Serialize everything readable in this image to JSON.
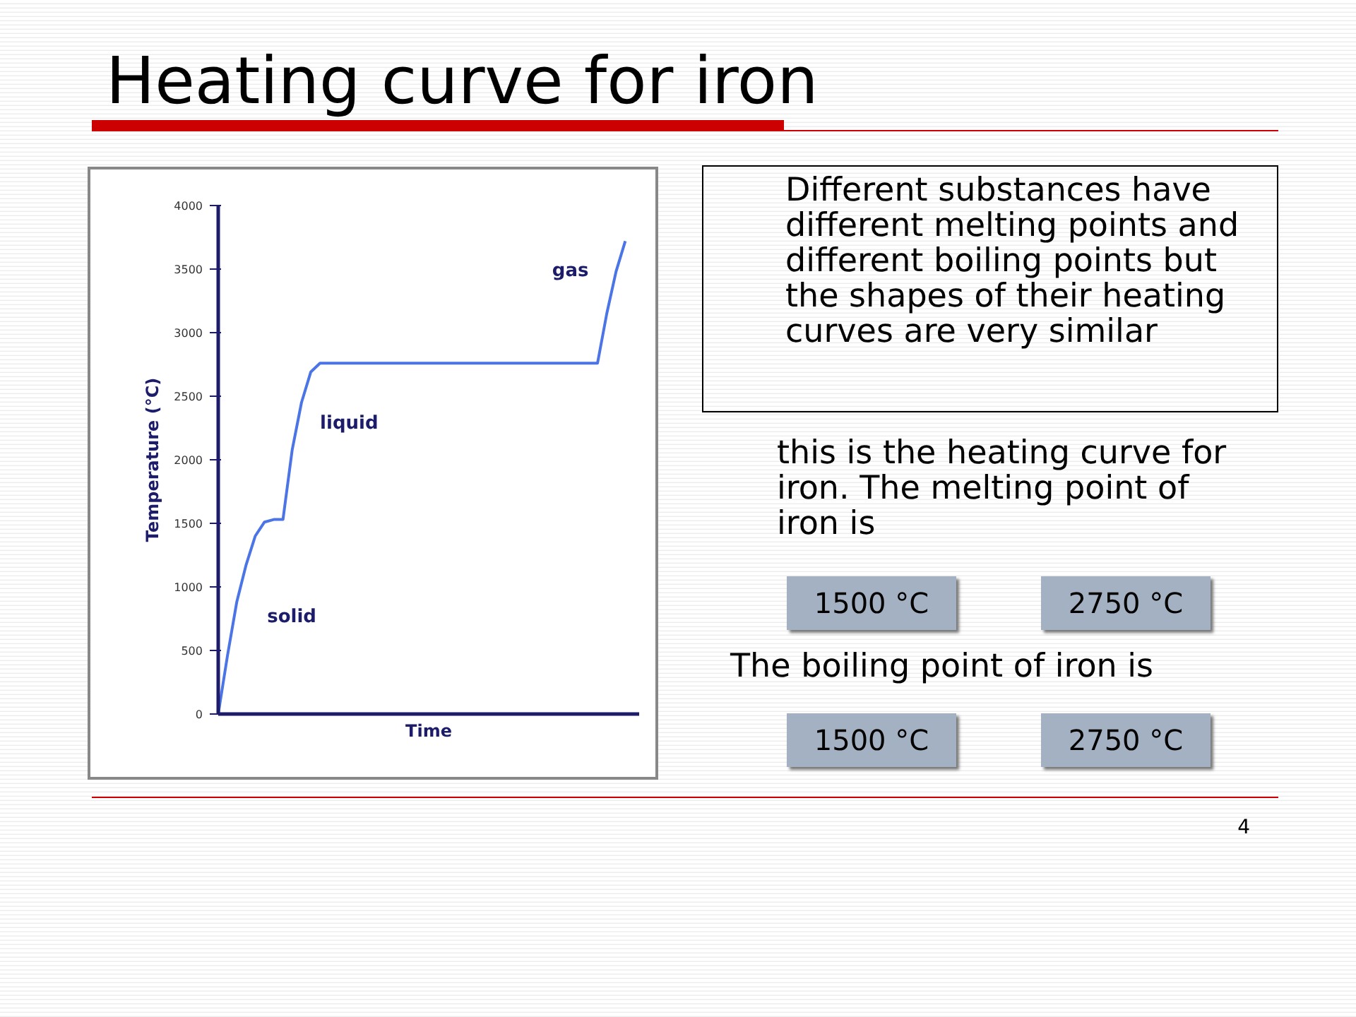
{
  "chart_data": {
    "type": "line",
    "title": "Heating curve for iron",
    "xlabel": "Time",
    "ylabel": "Temperature (°C)",
    "categories": [
      null,
      null,
      null,
      null,
      null,
      null,
      null,
      null,
      null,
      null,
      null,
      null,
      null,
      null,
      null,
      null,
      null,
      null,
      null,
      null,
      null,
      null,
      null,
      null,
      null,
      null,
      null,
      null,
      null,
      null,
      null,
      null,
      null,
      null,
      null,
      null,
      null,
      null,
      null,
      null,
      null,
      null,
      null,
      null,
      null
    ],
    "series": [
      {
        "color": "#4b74e6",
        "values": [
          0,
          460,
          880,
          1170,
          1400,
          1510,
          1530,
          1530,
          2080,
          2450,
          2690,
          2760,
          2760,
          2760,
          2760,
          2760,
          2760,
          2760,
          2760,
          2760,
          2760,
          2760,
          2760,
          2760,
          2760,
          2760,
          2760,
          2760,
          2760,
          2760,
          2760,
          2760,
          2760,
          2760,
          2760,
          2760,
          2760,
          2760,
          2760,
          2760,
          2760,
          2760,
          3150,
          3480,
          3720
        ]
      }
    ],
    "ylim": [
      0,
      4000
    ],
    "yticks": [
      0,
      500,
      1000,
      1500,
      2000,
      2500,
      3000,
      3500,
      4000
    ],
    "grid": false,
    "marker": "none",
    "line_style": "solid",
    "annotations": [
      "Different substances have different melting points and different boiling points but the shapes of their heating curves are very similar",
      "this is the heating curve for iron. The melting point of iron is",
      "1500 °C",
      "2750 °C",
      "The boiling point of iron is",
      "1500 °C",
      "2750 °C",
      "4",
      "solid",
      "liquid",
      "gas"
    ]
  }
}
